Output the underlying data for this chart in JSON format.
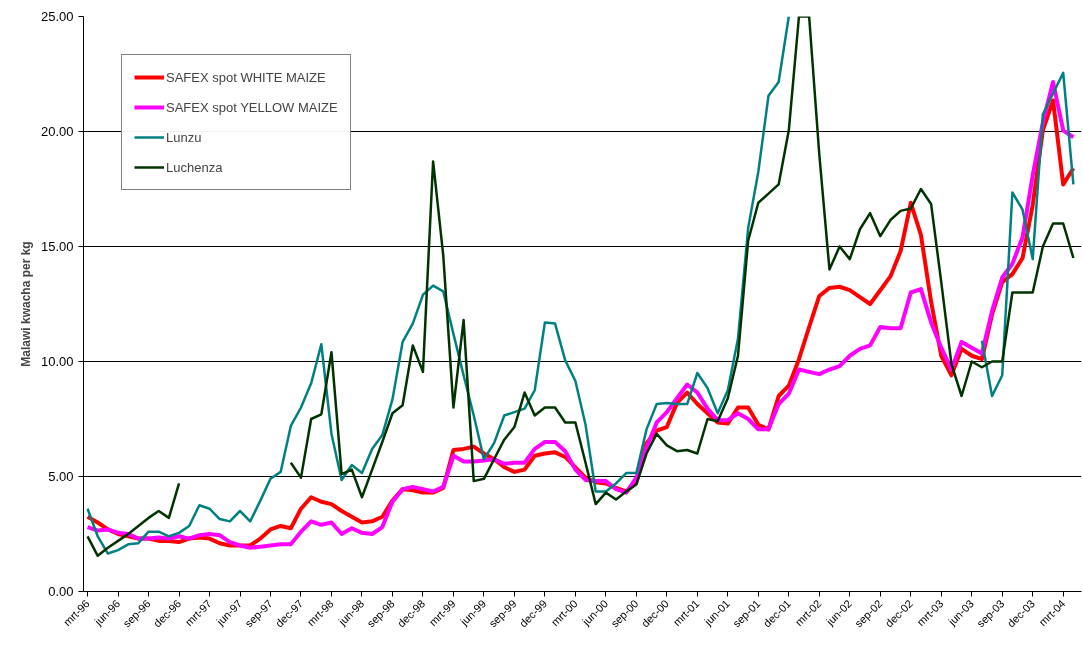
{
  "chart_data": {
    "type": "line",
    "ylabel": "Malawi kwacha per kg",
    "categories": [
      "mrt-96",
      null,
      null,
      "jun-96",
      null,
      null,
      "sep-96",
      null,
      null,
      "dec-96",
      null,
      null,
      "mrt-97",
      null,
      null,
      "jun-97",
      null,
      null,
      "sep-97",
      null,
      null,
      "dec-97",
      null,
      null,
      "mrt-98",
      null,
      null,
      "jun-98",
      null,
      null,
      "sep-98",
      null,
      null,
      "dec-98",
      null,
      null,
      "mrt-99",
      null,
      null,
      "jun-99",
      null,
      null,
      "sep-99",
      null,
      null,
      "dec-99",
      null,
      null,
      "mrt-00",
      null,
      null,
      "jun-00",
      null,
      null,
      "sep-00",
      null,
      null,
      "dec-00",
      null,
      null,
      "mrt-01",
      null,
      null,
      "jun-01",
      null,
      null,
      "sep-01",
      null,
      null,
      "dec-01",
      null,
      null,
      "mrt-02",
      null,
      null,
      "jun-02",
      null,
      null,
      "sep-02",
      null,
      null,
      "dec-02",
      null,
      null,
      "mrt-03",
      null,
      null,
      "jun-03",
      null,
      null,
      "sep-03",
      null,
      null,
      "dec-03",
      null,
      null,
      "mrt-04",
      null
    ],
    "series": [
      {
        "name": "SAFEX spot WHITE MAIZE",
        "color": "#ff0000",
        "values": [
          3.25,
          3.0,
          2.7,
          2.5,
          2.4,
          2.3,
          2.3,
          2.2,
          2.2,
          2.15,
          2.3,
          2.35,
          2.3,
          2.1,
          2.0,
          2.0,
          2.0,
          2.3,
          2.7,
          2.85,
          2.75,
          3.6,
          4.1,
          3.9,
          3.8,
          3.5,
          3.25,
          3.0,
          3.05,
          3.25,
          3.95,
          4.45,
          4.4,
          4.3,
          4.3,
          4.5,
          6.15,
          6.2,
          6.3,
          6.0,
          5.75,
          5.4,
          5.2,
          5.3,
          5.9,
          6.0,
          6.05,
          5.85,
          5.4,
          4.95,
          4.75,
          4.7,
          4.5,
          4.35,
          4.75,
          6.45,
          7.0,
          7.15,
          8.2,
          8.65,
          8.15,
          7.75,
          7.35,
          7.3,
          8.0,
          8.0,
          7.25,
          7.05,
          8.5,
          8.95,
          10.1,
          11.5,
          12.85,
          13.2,
          13.25,
          13.1,
          12.8,
          12.5,
          13.1,
          13.7,
          14.8,
          16.9,
          15.5,
          12.6,
          10.25,
          9.4,
          10.55,
          10.25,
          10.1,
          12.05,
          13.45,
          13.8,
          14.5,
          16.8,
          20.05,
          21.35,
          17.7,
          18.4
        ]
      },
      {
        "name": "SAFEX spot YELLOW MAIZE",
        "color": "#ff00ff",
        "values": [
          2.8,
          2.65,
          2.7,
          2.55,
          2.5,
          2.3,
          2.3,
          2.35,
          2.3,
          2.4,
          2.3,
          2.45,
          2.5,
          2.45,
          2.15,
          2.0,
          1.9,
          1.95,
          2.0,
          2.05,
          2.05,
          2.6,
          3.05,
          2.9,
          3.0,
          2.5,
          2.75,
          2.55,
          2.5,
          2.8,
          3.9,
          4.45,
          4.55,
          4.45,
          4.35,
          4.55,
          5.9,
          5.65,
          5.65,
          5.7,
          5.75,
          5.55,
          5.6,
          5.6,
          6.2,
          6.5,
          6.5,
          6.1,
          5.3,
          4.85,
          4.8,
          4.8,
          4.45,
          4.3,
          4.95,
          6.25,
          7.35,
          7.8,
          8.4,
          9.0,
          8.65,
          7.95,
          7.45,
          7.45,
          7.75,
          7.5,
          7.05,
          7.05,
          8.15,
          8.6,
          9.65,
          9.55,
          9.45,
          9.65,
          9.8,
          10.25,
          10.55,
          10.7,
          11.5,
          11.45,
          11.45,
          13.0,
          13.15,
          11.7,
          10.6,
          9.65,
          10.85,
          10.6,
          10.35,
          12.2,
          13.65,
          14.25,
          15.4,
          18.1,
          20.4,
          22.15,
          20.05,
          19.75
        ]
      },
      {
        "name": "Lunzu",
        "color": "#008080",
        "values": [
          3.6,
          2.4,
          1.65,
          1.8,
          2.05,
          2.1,
          2.6,
          2.6,
          2.4,
          2.55,
          2.85,
          3.75,
          3.6,
          3.15,
          3.05,
          3.5,
          3.05,
          3.95,
          4.9,
          5.2,
          7.2,
          8.0,
          9.05,
          10.75,
          6.85,
          4.85,
          5.5,
          5.15,
          6.2,
          6.8,
          8.35,
          10.85,
          11.65,
          12.9,
          13.3,
          13.05,
          11.2,
          9.4,
          7.65,
          5.75,
          6.45,
          7.65,
          7.8,
          7.95,
          8.75,
          11.7,
          11.65,
          10.05,
          9.15,
          7.25,
          4.35,
          4.35,
          4.7,
          5.15,
          5.15,
          7.05,
          8.15,
          8.2,
          8.15,
          8.15,
          9.5,
          8.85,
          7.75,
          8.75,
          11.0,
          15.8,
          18.25,
          21.55,
          22.15,
          25,
          null,
          null,
          null,
          null,
          null,
          null,
          null,
          null,
          null,
          null,
          null,
          null,
          null,
          null,
          null,
          null,
          null,
          null,
          10.9,
          8.5,
          9.4,
          17.35,
          16.6,
          14.45,
          20.75,
          21.65,
          22.55,
          17.7
        ]
      },
      {
        "name": "Luchenza",
        "color": "#003300",
        "values": [
          2.4,
          1.55,
          1.9,
          2.2,
          2.5,
          2.85,
          3.2,
          3.5,
          3.2,
          4.7,
          null,
          null,
          null,
          null,
          null,
          null,
          null,
          null,
          null,
          null,
          5.6,
          4.95,
          7.5,
          7.7,
          10.4,
          5.1,
          5.3,
          4.1,
          5.3,
          6.5,
          7.75,
          8.1,
          10.7,
          9.55,
          18.7,
          14.6,
          8.0,
          11.8,
          4.8,
          4.9,
          5.75,
          6.6,
          7.15,
          8.65,
          7.65,
          8.0,
          8.0,
          7.35,
          7.35,
          5.6,
          3.8,
          4.3,
          4.0,
          4.35,
          4.65,
          6.0,
          6.85,
          6.35,
          6.1,
          6.15,
          6.0,
          7.5,
          7.4,
          8.4,
          10.25,
          15.25,
          16.9,
          17.3,
          17.7,
          20.05,
          25,
          25,
          19.0,
          14.0,
          15.0,
          14.45,
          15.75,
          16.45,
          15.45,
          16.15,
          16.55,
          16.65,
          17.5,
          16.85,
          13.45,
          9.9,
          8.5,
          10.0,
          9.75,
          10.0,
          10.0,
          13.0,
          13.0,
          13.0,
          15.0,
          16.0,
          16.0,
          14.5
        ]
      }
    ],
    "ylim": [
      0,
      25
    ],
    "yticks": [
      {
        "value": 0,
        "label": "0.00"
      },
      {
        "value": 5,
        "label": "5.00"
      },
      {
        "value": 10,
        "label": "10.00"
      },
      {
        "value": 15,
        "label": "15.00"
      },
      {
        "value": 20,
        "label": "20.00"
      },
      {
        "value": 25,
        "label": "25.00"
      }
    ],
    "grid": "y",
    "legend": "top left",
    "marker": "none",
    "line_style": "solid"
  }
}
